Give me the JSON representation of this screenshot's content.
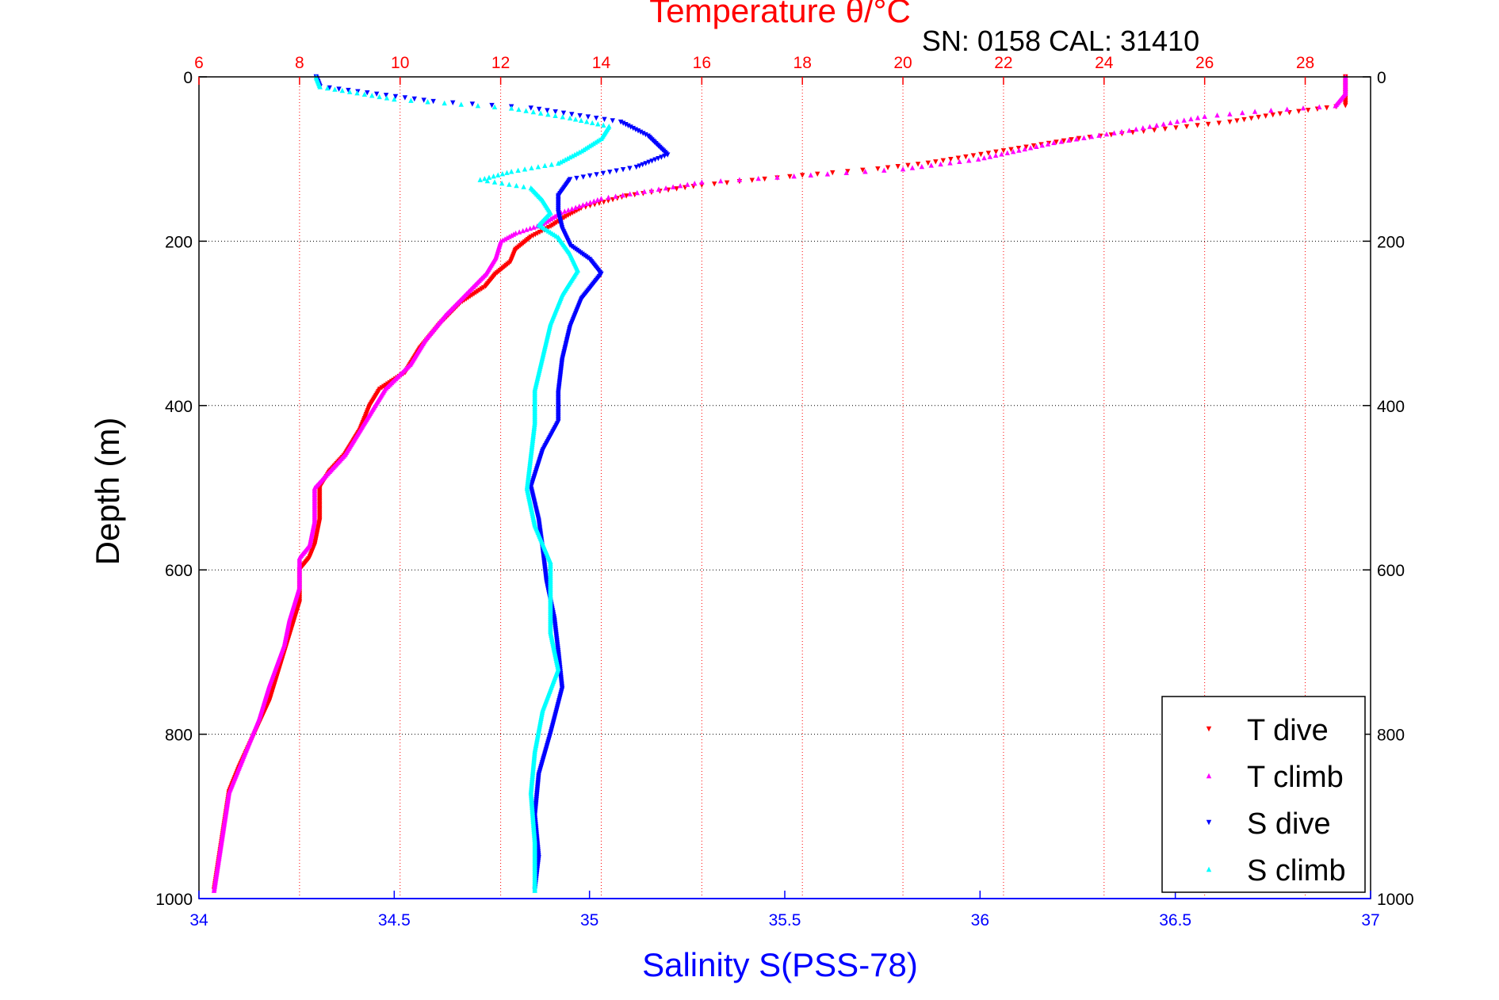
{
  "chart_data": {
    "type": "scatter",
    "title": "Temperature θ/°C",
    "annotation": "SN: 0158  CAL: 31410",
    "ylabel": "Depth (m)",
    "xlabel": "Salinity S(PSS-78)",
    "y_axis": {
      "range": [
        0,
        1000
      ],
      "reversed": true,
      "ticks": [
        0,
        200,
        400,
        600,
        800,
        1000
      ],
      "tick_labels": [
        "0",
        "200",
        "400",
        "600",
        "800",
        "1000"
      ],
      "grid": true
    },
    "temperature_axis": {
      "position": "top",
      "range": [
        6,
        29.3
      ],
      "ticks": [
        6,
        8,
        10,
        12,
        14,
        16,
        18,
        20,
        22,
        24,
        26,
        28
      ],
      "tick_labels": [
        "6",
        "8",
        "10",
        "12",
        "14",
        "16",
        "18",
        "20",
        "22",
        "24",
        "26",
        "28"
      ],
      "color": "#ff0000",
      "grid": true
    },
    "salinity_axis": {
      "position": "bottom",
      "range": [
        34,
        37
      ],
      "ticks": [
        34,
        34.5,
        35,
        35.5,
        36,
        36.5,
        37
      ],
      "tick_labels": [
        "34",
        "34.5",
        "35",
        "35.5",
        "36",
        "36.5",
        "37"
      ],
      "color": "#0000ff"
    },
    "legend": {
      "position": "bottom-right"
    },
    "series": [
      {
        "name": "T dive",
        "axis": "temperature",
        "color": "#ff0000",
        "marker": "triangle-down",
        "points": [
          [
            28.8,
            0
          ],
          [
            28.8,
            20
          ],
          [
            28.8,
            35
          ],
          [
            27.5,
            45
          ],
          [
            26.5,
            55
          ],
          [
            25,
            65
          ],
          [
            23.5,
            75
          ],
          [
            22,
            90
          ],
          [
            20.5,
            105
          ],
          [
            19.5,
            112
          ],
          [
            18,
            120
          ],
          [
            16,
            132
          ],
          [
            14.5,
            145
          ],
          [
            13.6,
            160
          ],
          [
            13.3,
            170
          ],
          [
            13,
            182
          ],
          [
            12.6,
            195
          ],
          [
            12.3,
            210
          ],
          [
            12.2,
            225
          ],
          [
            11.9,
            240
          ],
          [
            11.7,
            255
          ],
          [
            11.2,
            275
          ],
          [
            10.8,
            300
          ],
          [
            10.4,
            330
          ],
          [
            10.1,
            360
          ],
          [
            9.6,
            380
          ],
          [
            9.4,
            400
          ],
          [
            9.2,
            430
          ],
          [
            8.9,
            460
          ],
          [
            8.6,
            480
          ],
          [
            8.4,
            500
          ],
          [
            8.4,
            540
          ],
          [
            8.3,
            570
          ],
          [
            8.2,
            585
          ],
          [
            8.0,
            600
          ],
          [
            8.0,
            640
          ],
          [
            7.8,
            680
          ],
          [
            7.6,
            720
          ],
          [
            7.4,
            760
          ],
          [
            7.1,
            800
          ],
          [
            6.8,
            840
          ],
          [
            6.6,
            870
          ],
          [
            6.5,
            910
          ],
          [
            6.4,
            950
          ],
          [
            6.3,
            990
          ]
        ]
      },
      {
        "name": "T climb",
        "axis": "temperature",
        "color": "#ff00ff",
        "marker": "triangle-up",
        "points": [
          [
            28.8,
            0
          ],
          [
            28.8,
            20
          ],
          [
            28.6,
            35
          ],
          [
            27,
            42
          ],
          [
            26,
            48
          ],
          [
            24.5,
            65
          ],
          [
            23,
            80
          ],
          [
            21.5,
            100
          ],
          [
            20,
            112
          ],
          [
            18.5,
            118
          ],
          [
            17.5,
            122
          ],
          [
            16,
            128
          ],
          [
            15,
            138
          ],
          [
            14,
            148
          ],
          [
            13.2,
            165
          ],
          [
            12.8,
            180
          ],
          [
            12.3,
            190
          ],
          [
            12.0,
            200
          ],
          [
            11.9,
            220
          ],
          [
            11.7,
            240
          ],
          [
            11.3,
            265
          ],
          [
            10.9,
            290
          ],
          [
            10.5,
            320
          ],
          [
            10.2,
            350
          ],
          [
            9.7,
            380
          ],
          [
            9.5,
            400
          ],
          [
            9.2,
            430
          ],
          [
            8.9,
            460
          ],
          [
            8.6,
            480
          ],
          [
            8.3,
            500
          ],
          [
            8.3,
            540
          ],
          [
            8.2,
            570
          ],
          [
            8.0,
            585
          ],
          [
            8.0,
            620
          ],
          [
            7.8,
            660
          ],
          [
            7.7,
            690
          ],
          [
            7.4,
            740
          ],
          [
            7.2,
            780
          ],
          [
            7.0,
            810
          ],
          [
            6.8,
            840
          ],
          [
            6.6,
            870
          ],
          [
            6.5,
            910
          ],
          [
            6.4,
            950
          ],
          [
            6.3,
            990
          ]
        ]
      },
      {
        "name": "S dive",
        "axis": "salinity",
        "color": "#0000ff",
        "marker": "triangle-down",
        "points": [
          [
            34.3,
            0
          ],
          [
            34.31,
            12
          ],
          [
            34.6,
            30
          ],
          [
            34.85,
            38
          ],
          [
            35.08,
            55
          ],
          [
            35.15,
            72
          ],
          [
            35.2,
            95
          ],
          [
            35.12,
            110
          ],
          [
            34.95,
            125
          ],
          [
            34.92,
            145
          ],
          [
            34.92,
            165
          ],
          [
            34.93,
            185
          ],
          [
            34.95,
            205
          ],
          [
            35.0,
            222
          ],
          [
            35.03,
            240
          ],
          [
            34.98,
            270
          ],
          [
            34.95,
            305
          ],
          [
            34.93,
            345
          ],
          [
            34.92,
            385
          ],
          [
            34.92,
            420
          ],
          [
            34.88,
            455
          ],
          [
            34.85,
            500
          ],
          [
            34.87,
            540
          ],
          [
            34.88,
            575
          ],
          [
            34.89,
            615
          ],
          [
            34.91,
            660
          ],
          [
            34.92,
            700
          ],
          [
            34.93,
            745
          ],
          [
            34.9,
            800
          ],
          [
            34.87,
            850
          ],
          [
            34.86,
            900
          ],
          [
            34.87,
            950
          ],
          [
            34.86,
            990
          ]
        ]
      },
      {
        "name": "S climb",
        "axis": "salinity",
        "color": "#00ffff",
        "marker": "triangle-up",
        "points": [
          [
            34.3,
            0
          ],
          [
            34.31,
            12
          ],
          [
            34.5,
            27
          ],
          [
            34.8,
            38
          ],
          [
            34.95,
            50
          ],
          [
            35.05,
            60
          ],
          [
            35.03,
            75
          ],
          [
            34.98,
            90
          ],
          [
            34.92,
            105
          ],
          [
            34.8,
            115
          ],
          [
            34.72,
            125
          ],
          [
            34.85,
            135
          ],
          [
            34.88,
            150
          ],
          [
            34.9,
            165
          ],
          [
            34.87,
            180
          ],
          [
            34.92,
            195
          ],
          [
            34.95,
            215
          ],
          [
            34.97,
            235
          ],
          [
            34.93,
            265
          ],
          [
            34.9,
            300
          ],
          [
            34.88,
            340
          ],
          [
            34.86,
            380
          ],
          [
            34.86,
            420
          ],
          [
            34.85,
            460
          ],
          [
            34.84,
            500
          ],
          [
            34.86,
            545
          ],
          [
            34.9,
            590
          ],
          [
            34.9,
            630
          ],
          [
            34.9,
            675
          ],
          [
            34.92,
            720
          ],
          [
            34.88,
            770
          ],
          [
            34.86,
            820
          ],
          [
            34.85,
            870
          ],
          [
            34.86,
            930
          ],
          [
            34.86,
            990
          ]
        ]
      }
    ]
  }
}
